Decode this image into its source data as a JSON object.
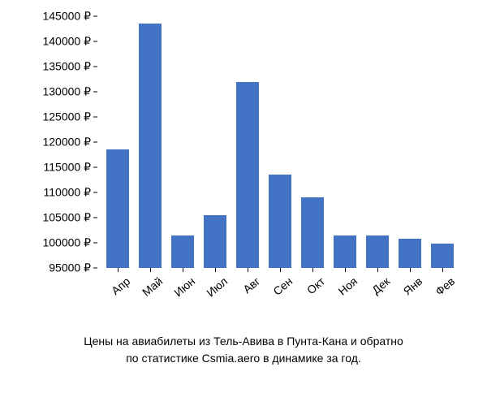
{
  "chart": {
    "type": "bar",
    "categories": [
      "Апр",
      "Май",
      "Июн",
      "Июл",
      "Авг",
      "Сен",
      "Окт",
      "Ноя",
      "Дек",
      "Янв",
      "Фев"
    ],
    "values": [
      118500,
      143500,
      101500,
      105500,
      132000,
      113500,
      109000,
      101500,
      101500,
      100800,
      99800
    ],
    "bar_color": "#4472c4",
    "background_color": "#ffffff",
    "ylim_min": 95000,
    "ylim_max": 145000,
    "ytick_step": 5000,
    "ytick_suffix": " ₽",
    "yticks": [
      95000,
      100000,
      105000,
      110000,
      115000,
      120000,
      125000,
      130000,
      135000,
      140000,
      145000
    ],
    "bar_width_ratio": 0.72,
    "tick_fontsize": 14,
    "tick_color": "#000000",
    "xlabel_rotation_deg": -40,
    "caption_fontsize": 14,
    "caption_color": "#000000"
  },
  "caption": {
    "line1": "Цены на авиабилеты из Тель-Авива в Пунта-Кана и обратно",
    "line2": "по статистике Csmia.aero в динамике за год."
  }
}
